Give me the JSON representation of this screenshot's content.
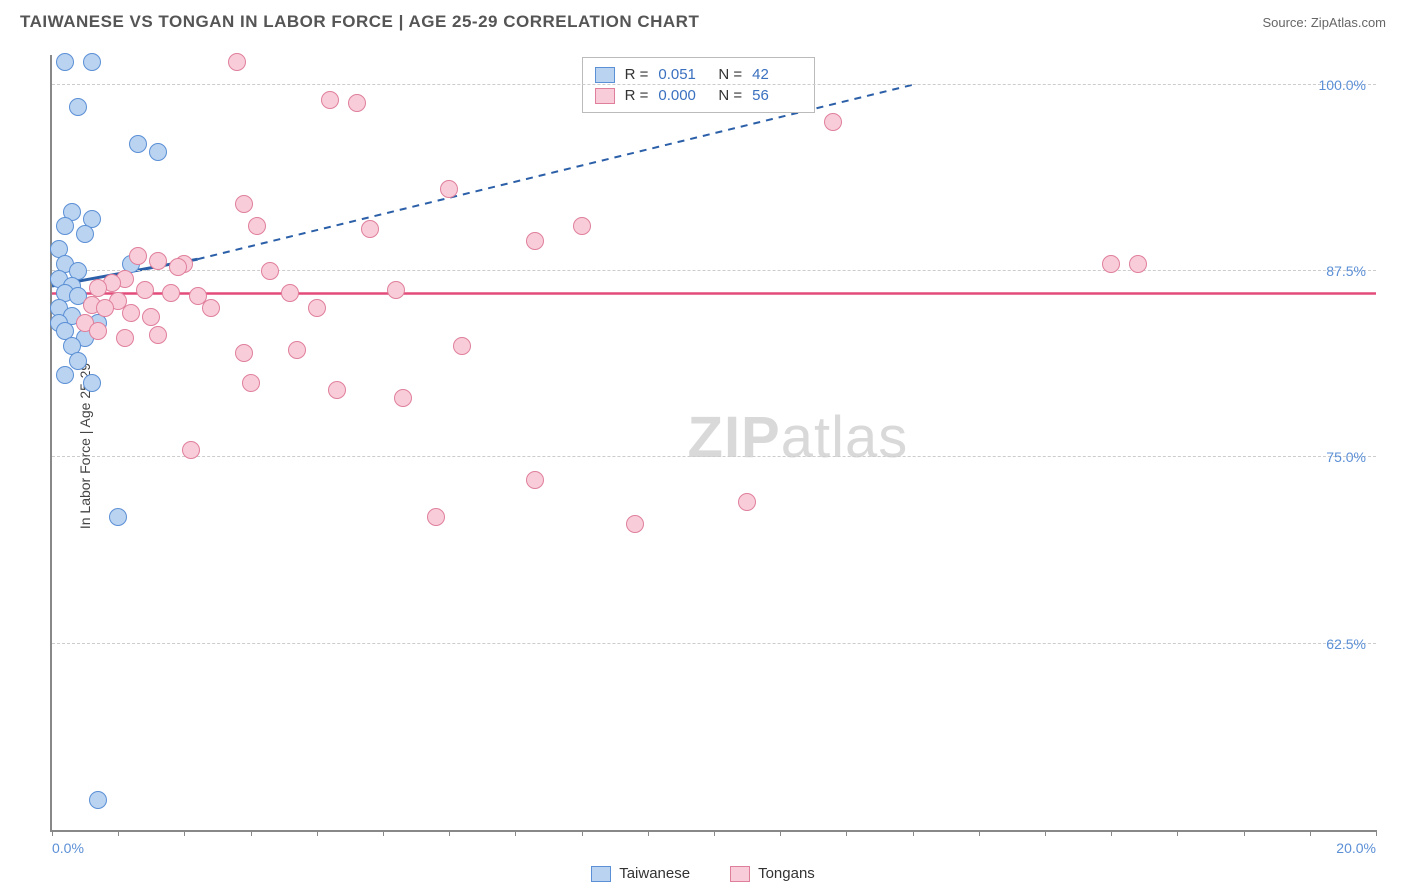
{
  "header": {
    "title": "TAIWANESE VS TONGAN IN LABOR FORCE | AGE 25-29 CORRELATION CHART",
    "source": "Source: ZipAtlas.com"
  },
  "chart": {
    "type": "scatter",
    "ylabel": "In Labor Force | Age 25-29",
    "xlim": [
      0,
      20
    ],
    "ylim": [
      50,
      102
    ],
    "x_ticks": [
      0,
      1,
      2,
      3,
      4,
      5,
      6,
      7,
      8,
      9,
      10,
      11,
      12,
      13,
      14,
      15,
      16,
      17,
      18,
      19,
      20
    ],
    "x_tick_labels_shown": {
      "0": "0.0%",
      "20": "20.0%"
    },
    "y_gridlines": [
      62.5,
      75.0,
      87.5,
      100.0
    ],
    "y_tick_labels": {
      "62.5": "62.5%",
      "75.0": "75.0%",
      "87.5": "87.5%",
      "100.0": "100.0%"
    },
    "grid_color": "#cccccc",
    "axis_color": "#888888",
    "tick_label_color": "#5b8fd6",
    "background_color": "#ffffff",
    "watermark": "ZIPatlas",
    "marker_radius": 9,
    "marker_stroke_width": 1.5,
    "series": [
      {
        "name": "Taiwanese",
        "fill": "#b9d3f0",
        "stroke": "#5b8fd6",
        "R": "0.051",
        "N": "42",
        "trend": {
          "solid_from": [
            0,
            86.5
          ],
          "solid_to": [
            2.2,
            88.3
          ],
          "dashed_to": [
            13,
            100
          ],
          "color": "#2b5fa8",
          "width": 3
        },
        "points": [
          [
            0.2,
            101.5
          ],
          [
            0.6,
            101.5
          ],
          [
            0.4,
            98.5
          ],
          [
            1.3,
            96.0
          ],
          [
            1.6,
            95.5
          ],
          [
            0.3,
            91.5
          ],
          [
            0.6,
            91.0
          ],
          [
            0.2,
            90.5
          ],
          [
            0.5,
            90.0
          ],
          [
            0.1,
            89.0
          ],
          [
            0.2,
            88.0
          ],
          [
            0.4,
            87.5
          ],
          [
            0.1,
            87.0
          ],
          [
            0.3,
            86.5
          ],
          [
            0.2,
            86.0
          ],
          [
            0.4,
            85.8
          ],
          [
            1.2,
            88.0
          ],
          [
            0.1,
            85.0
          ],
          [
            0.3,
            84.5
          ],
          [
            0.1,
            84.0
          ],
          [
            0.2,
            83.5
          ],
          [
            0.5,
            83.0
          ],
          [
            0.3,
            82.5
          ],
          [
            0.7,
            84.0
          ],
          [
            0.4,
            81.5
          ],
          [
            0.2,
            80.5
          ],
          [
            0.6,
            80.0
          ],
          [
            1.0,
            71.0
          ],
          [
            0.7,
            52.0
          ]
        ]
      },
      {
        "name": "Tongans",
        "fill": "#f8cdd9",
        "stroke": "#e07f9c",
        "R": "0.000",
        "N": "56",
        "trend": {
          "flat_y": 86.0,
          "color": "#e24b7a",
          "width": 2.5
        },
        "points": [
          [
            2.8,
            101.5
          ],
          [
            4.2,
            99.0
          ],
          [
            4.6,
            98.8
          ],
          [
            11.8,
            97.5
          ],
          [
            2.9,
            92.0
          ],
          [
            6.0,
            93.0
          ],
          [
            3.1,
            90.5
          ],
          [
            4.8,
            90.3
          ],
          [
            7.3,
            89.5
          ],
          [
            1.3,
            88.5
          ],
          [
            1.6,
            88.2
          ],
          [
            2.0,
            88.0
          ],
          [
            1.9,
            87.8
          ],
          [
            1.1,
            87.0
          ],
          [
            0.9,
            86.7
          ],
          [
            0.7,
            86.4
          ],
          [
            1.4,
            86.2
          ],
          [
            1.8,
            86.0
          ],
          [
            2.2,
            85.8
          ],
          [
            1.0,
            85.5
          ],
          [
            0.6,
            85.2
          ],
          [
            0.8,
            85.0
          ],
          [
            1.2,
            84.7
          ],
          [
            1.5,
            84.4
          ],
          [
            2.4,
            85.0
          ],
          [
            3.3,
            87.5
          ],
          [
            3.6,
            86.0
          ],
          [
            5.2,
            86.2
          ],
          [
            4.0,
            85.0
          ],
          [
            16.0,
            88.0
          ],
          [
            16.4,
            88.0
          ],
          [
            0.5,
            84.0
          ],
          [
            0.7,
            83.5
          ],
          [
            1.1,
            83.0
          ],
          [
            1.6,
            83.2
          ],
          [
            2.9,
            82.0
          ],
          [
            3.7,
            82.2
          ],
          [
            6.2,
            82.5
          ],
          [
            3.0,
            80.0
          ],
          [
            4.3,
            79.5
          ],
          [
            5.3,
            79.0
          ],
          [
            2.1,
            75.5
          ],
          [
            7.3,
            73.5
          ],
          [
            5.8,
            71.0
          ],
          [
            8.8,
            70.5
          ],
          [
            10.5,
            72.0
          ],
          [
            8.0,
            90.5
          ]
        ]
      }
    ],
    "bottom_legend": [
      "Taiwanese",
      "Tongans"
    ]
  }
}
